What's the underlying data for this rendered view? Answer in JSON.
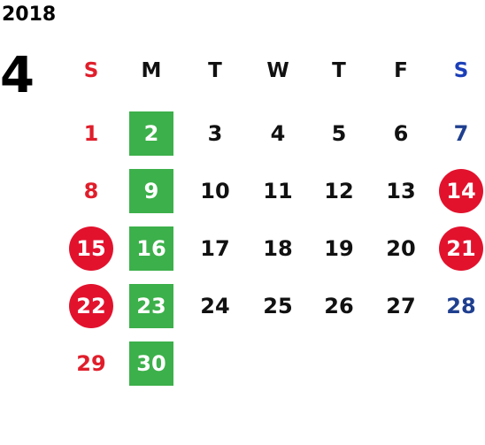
{
  "year": "2018",
  "month": "4",
  "weekdays": [
    "S",
    "M",
    "T",
    "W",
    "T",
    "F",
    "S"
  ],
  "weeks": [
    [
      {
        "day": "1",
        "style": "sun"
      },
      {
        "day": "2",
        "style": "green"
      },
      {
        "day": "3",
        "style": ""
      },
      {
        "day": "4",
        "style": ""
      },
      {
        "day": "5",
        "style": ""
      },
      {
        "day": "6",
        "style": ""
      },
      {
        "day": "7",
        "style": "sat"
      }
    ],
    [
      {
        "day": "8",
        "style": "sun"
      },
      {
        "day": "9",
        "style": "green"
      },
      {
        "day": "10",
        "style": ""
      },
      {
        "day": "11",
        "style": ""
      },
      {
        "day": "12",
        "style": ""
      },
      {
        "day": "13",
        "style": ""
      },
      {
        "day": "14",
        "style": "red"
      }
    ],
    [
      {
        "day": "15",
        "style": "red"
      },
      {
        "day": "16",
        "style": "green"
      },
      {
        "day": "17",
        "style": ""
      },
      {
        "day": "18",
        "style": ""
      },
      {
        "day": "19",
        "style": ""
      },
      {
        "day": "20",
        "style": ""
      },
      {
        "day": "21",
        "style": "red"
      }
    ],
    [
      {
        "day": "22",
        "style": "red"
      },
      {
        "day": "23",
        "style": "green"
      },
      {
        "day": "24",
        "style": ""
      },
      {
        "day": "25",
        "style": ""
      },
      {
        "day": "26",
        "style": ""
      },
      {
        "day": "27",
        "style": ""
      },
      {
        "day": "28",
        "style": "sat"
      }
    ],
    [
      {
        "day": "29",
        "style": "sun"
      },
      {
        "day": "30",
        "style": "green"
      }
    ]
  ],
  "colors": {
    "sunday": "#e01e2b",
    "saturday": "#1f3f8f",
    "highlight_green": "#3cb04a",
    "highlight_red": "#e2122d"
  }
}
